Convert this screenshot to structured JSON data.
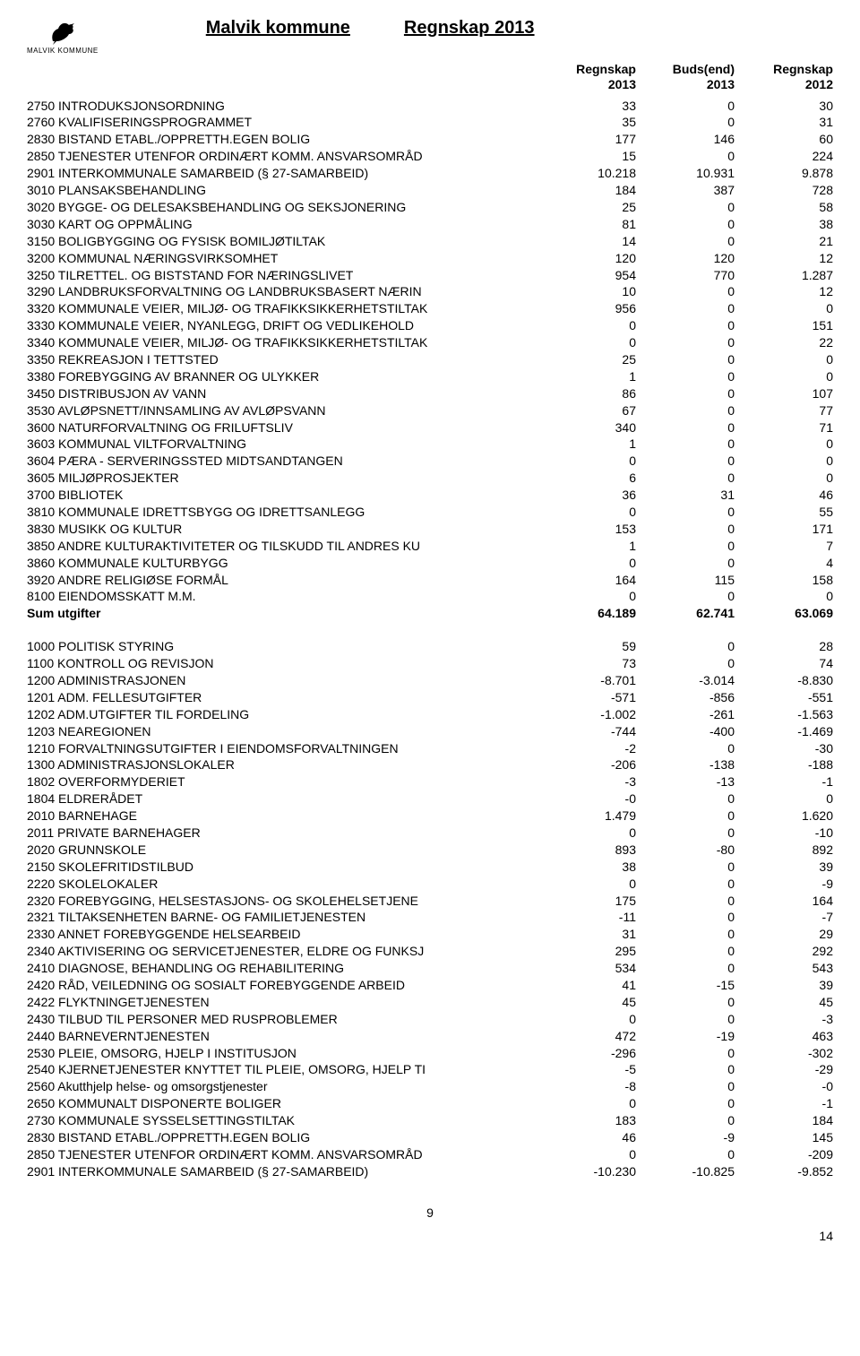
{
  "logo_caption": "MALVIK KOMMUNE",
  "title_left": "Malvik kommune",
  "title_right": "Regnskap 2013",
  "columns": [
    {
      "line1": "Regnskap",
      "line2": "2013"
    },
    {
      "line1": "Buds(end)",
      "line2": "2013"
    },
    {
      "line1": "Regnskap",
      "line2": "2012"
    }
  ],
  "block1": [
    {
      "label": "2750 INTRODUKSJONSORDNING",
      "v": [
        "33",
        "0",
        "30"
      ]
    },
    {
      "label": "2760 KVALIFISERINGSPROGRAMMET",
      "v": [
        "35",
        "0",
        "31"
      ]
    },
    {
      "label": "2830 BISTAND ETABL./OPPRETTH.EGEN BOLIG",
      "v": [
        "177",
        "146",
        "60"
      ]
    },
    {
      "label": "2850 TJENESTER UTENFOR ORDINÆRT KOMM. ANSVARSOMRÅD",
      "v": [
        "15",
        "0",
        "224"
      ]
    },
    {
      "label": "2901 INTERKOMMUNALE SAMARBEID (§ 27-SAMARBEID)",
      "v": [
        "10.218",
        "10.931",
        "9.878"
      ]
    },
    {
      "label": "3010 PLANSAKSBEHANDLING",
      "v": [
        "184",
        "387",
        "728"
      ]
    },
    {
      "label": "3020 BYGGE- OG DELESAKSBEHANDLING OG SEKSJONERING",
      "v": [
        "25",
        "0",
        "58"
      ]
    },
    {
      "label": "3030 KART OG OPPMÅLING",
      "v": [
        "81",
        "0",
        "38"
      ]
    },
    {
      "label": "3150 BOLIGBYGGING OG FYSISK BOMILJØTILTAK",
      "v": [
        "14",
        "0",
        "21"
      ]
    },
    {
      "label": "3200 KOMMUNAL NÆRINGSVIRKSOMHET",
      "v": [
        "120",
        "120",
        "12"
      ]
    },
    {
      "label": "3250 TILRETTEL. OG BISTSTAND FOR NÆRINGSLIVET",
      "v": [
        "954",
        "770",
        "1.287"
      ]
    },
    {
      "label": "3290 LANDBRUKSFORVALTNING OG LANDBRUKSBASERT NÆRIN",
      "v": [
        "10",
        "0",
        "12"
      ]
    },
    {
      "label": "3320 KOMMUNALE VEIER, MILJØ- OG TRAFIKKSIKKERHETSTILTAK",
      "v": [
        "956",
        "0",
        "0"
      ]
    },
    {
      "label": "3330 KOMMUNALE VEIER, NYANLEGG, DRIFT OG VEDLIKEHOLD",
      "v": [
        "0",
        "0",
        "151"
      ]
    },
    {
      "label": "3340 KOMMUNALE VEIER, MILJØ- OG TRAFIKKSIKKERHETSTILTAK",
      "v": [
        "0",
        "0",
        "22"
      ]
    },
    {
      "label": "3350 REKREASJON I TETTSTED",
      "v": [
        "25",
        "0",
        "0"
      ]
    },
    {
      "label": "3380 FOREBYGGING AV BRANNER OG ULYKKER",
      "v": [
        "1",
        "0",
        "0"
      ]
    },
    {
      "label": "3450 DISTRIBUSJON AV VANN",
      "v": [
        "86",
        "0",
        "107"
      ]
    },
    {
      "label": "3530 AVLØPSNETT/INNSAMLING AV AVLØPSVANN",
      "v": [
        "67",
        "0",
        "77"
      ]
    },
    {
      "label": "3600 NATURFORVALTNING OG FRILUFTSLIV",
      "v": [
        "340",
        "0",
        "71"
      ]
    },
    {
      "label": "3603 KOMMUNAL VILTFORVALTNING",
      "v": [
        "1",
        "0",
        "0"
      ]
    },
    {
      "label": "3604 PÆRA - SERVERINGSSTED MIDTSANDTANGEN",
      "v": [
        "0",
        "0",
        "0"
      ]
    },
    {
      "label": "3605 MILJØPROSJEKTER",
      "v": [
        "6",
        "0",
        "0"
      ]
    },
    {
      "label": "3700 BIBLIOTEK",
      "v": [
        "36",
        "31",
        "46"
      ]
    },
    {
      "label": "3810 KOMMUNALE IDRETTSBYGG OG IDRETTSANLEGG",
      "v": [
        "0",
        "0",
        "55"
      ]
    },
    {
      "label": "3830 MUSIKK OG KULTUR",
      "v": [
        "153",
        "0",
        "171"
      ]
    },
    {
      "label": "3850 ANDRE KULTURAKTIVITETER OG TILSKUDD TIL ANDRES KU",
      "v": [
        "1",
        "0",
        "7"
      ]
    },
    {
      "label": "3860 KOMMUNALE KULTURBYGG",
      "v": [
        "0",
        "0",
        "4"
      ]
    },
    {
      "label": "3920 ANDRE RELIGIØSE FORMÅL",
      "v": [
        "164",
        "115",
        "158"
      ]
    },
    {
      "label": "8100 EIENDOMSSKATT M.M.",
      "v": [
        "0",
        "0",
        "0"
      ]
    }
  ],
  "sum1": {
    "label": "Sum utgifter",
    "v": [
      "64.189",
      "62.741",
      "63.069"
    ]
  },
  "block2": [
    {
      "label": "1000 POLITISK STYRING",
      "v": [
        "59",
        "0",
        "28"
      ]
    },
    {
      "label": "1100 KONTROLL OG REVISJON",
      "v": [
        "73",
        "0",
        "74"
      ]
    },
    {
      "label": "1200 ADMINISTRASJONEN",
      "v": [
        "-8.701",
        "-3.014",
        "-8.830"
      ]
    },
    {
      "label": "1201 ADM. FELLESUTGIFTER",
      "v": [
        "-571",
        "-856",
        "-551"
      ]
    },
    {
      "label": "1202 ADM.UTGIFTER TIL FORDELING",
      "v": [
        "-1.002",
        "-261",
        "-1.563"
      ]
    },
    {
      "label": "1203 NEAREGIONEN",
      "v": [
        "-744",
        "-400",
        "-1.469"
      ]
    },
    {
      "label": "1210 FORVALTNINGSUTGIFTER I EIENDOMSFORVALTNINGEN",
      "v": [
        "-2",
        "0",
        "-30"
      ]
    },
    {
      "label": "1300 ADMINISTRASJONSLOKALER",
      "v": [
        "-206",
        "-138",
        "-188"
      ]
    },
    {
      "label": "1802 OVERFORMYDERIET",
      "v": [
        "-3",
        "-13",
        "-1"
      ]
    },
    {
      "label": "1804 ELDRERÅDET",
      "v": [
        "-0",
        "0",
        "0"
      ]
    },
    {
      "label": "2010 BARNEHAGE",
      "v": [
        "1.479",
        "0",
        "1.620"
      ]
    },
    {
      "label": "2011 PRIVATE BARNEHAGER",
      "v": [
        "0",
        "0",
        "-10"
      ]
    },
    {
      "label": "2020 GRUNNSKOLE",
      "v": [
        "893",
        "-80",
        "892"
      ]
    },
    {
      "label": "2150 SKOLEFRITIDSTILBUD",
      "v": [
        "38",
        "0",
        "39"
      ]
    },
    {
      "label": "2220 SKOLELOKALER",
      "v": [
        "0",
        "0",
        "-9"
      ]
    },
    {
      "label": "2320 FOREBYGGING, HELSESTASJONS- OG SKOLEHELSETJENE",
      "v": [
        "175",
        "0",
        "164"
      ]
    },
    {
      "label": "2321 TILTAKSENHETEN BARNE- OG FAMILIETJENESTEN",
      "v": [
        "-11",
        "0",
        "-7"
      ]
    },
    {
      "label": "2330 ANNET FOREBYGGENDE HELSEARBEID",
      "v": [
        "31",
        "0",
        "29"
      ]
    },
    {
      "label": "2340 AKTIVISERING OG SERVICETJENESTER, ELDRE OG FUNKSJ",
      "v": [
        "295",
        "0",
        "292"
      ]
    },
    {
      "label": "2410 DIAGNOSE, BEHANDLING OG REHABILITERING",
      "v": [
        "534",
        "0",
        "543"
      ]
    },
    {
      "label": "2420 RÅD, VEILEDNING OG SOSIALT FOREBYGGENDE ARBEID",
      "v": [
        "41",
        "-15",
        "39"
      ]
    },
    {
      "label": "2422 FLYKTNINGETJENESTEN",
      "v": [
        "45",
        "0",
        "45"
      ]
    },
    {
      "label": "2430 TILBUD TIL PERSONER MED RUSPROBLEMER",
      "v": [
        "0",
        "0",
        "-3"
      ]
    },
    {
      "label": "2440 BARNEVERNTJENESTEN",
      "v": [
        "472",
        "-19",
        "463"
      ]
    },
    {
      "label": "2530 PLEIE, OMSORG, HJELP I INSTITUSJON",
      "v": [
        "-296",
        "0",
        "-302"
      ]
    },
    {
      "label": "2540 KJERNETJENESTER KNYTTET TIL PLEIE, OMSORG, HJELP TI",
      "v": [
        "-5",
        "0",
        "-29"
      ]
    },
    {
      "label": "2560 Akutthjelp helse- og omsorgstjenester",
      "v": [
        "-8",
        "0",
        "-0"
      ]
    },
    {
      "label": "2650 KOMMUNALT DISPONERTE BOLIGER",
      "v": [
        "0",
        "0",
        "-1"
      ]
    },
    {
      "label": "2730 KOMMUNALE SYSSELSETTINGSTILTAK",
      "v": [
        "183",
        "0",
        "184"
      ]
    },
    {
      "label": "2830 BISTAND ETABL./OPPRETTH.EGEN BOLIG",
      "v": [
        "46",
        "-9",
        "145"
      ]
    },
    {
      "label": "2850 TJENESTER UTENFOR ORDINÆRT KOMM. ANSVARSOMRÅD",
      "v": [
        "0",
        "0",
        "-209"
      ]
    },
    {
      "label": "2901 INTERKOMMUNALE SAMARBEID (§ 27-SAMARBEID)",
      "v": [
        "-10.230",
        "-10.825",
        "-9.852"
      ]
    }
  ],
  "page_number": "9",
  "corner_number": "14"
}
